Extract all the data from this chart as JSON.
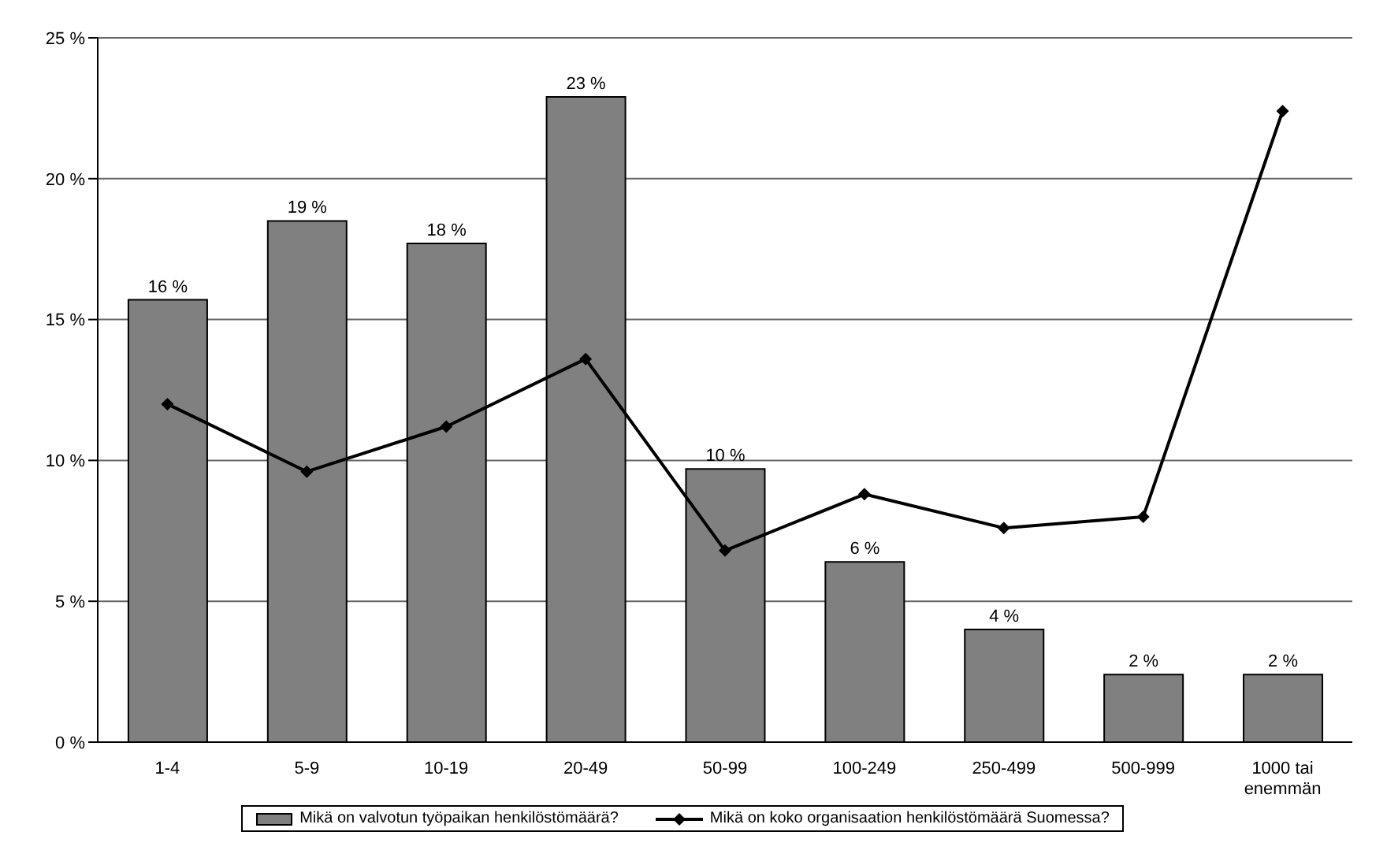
{
  "chart_data": {
    "type": "bar",
    "categories": [
      "1-4",
      "5-9",
      "10-19",
      "20-49",
      "50-99",
      "100-249",
      "250-499",
      "500-999",
      "1000 tai enemmän"
    ],
    "series": [
      {
        "name": "Mikä on valvotun työpaikan henkilöstömäärä?",
        "color": "#808080",
        "values": [
          15.7,
          18.5,
          17.7,
          22.9,
          9.7,
          6.4,
          4.0,
          2.4,
          2.4
        ],
        "value_labels": [
          "16 %",
          "19 %",
          "18 %",
          "23 %",
          "10 %",
          "6 %",
          "4 %",
          "2 %",
          "2 %"
        ]
      },
      {
        "name": "Mikä on koko organisaation henkilöstömäärä Suomessa?",
        "type": "line",
        "color": "#000000",
        "marker": "diamond",
        "values": [
          12.0,
          9.6,
          11.2,
          13.6,
          6.8,
          8.8,
          7.6,
          8.0,
          22.4
        ]
      }
    ],
    "ylim": [
      0,
      25
    ],
    "yticks": [
      {
        "value": 0,
        "label": "0 %"
      },
      {
        "value": 5,
        "label": "5 %"
      },
      {
        "value": 10,
        "label": "10 %"
      },
      {
        "value": 15,
        "label": "15 %"
      },
      {
        "value": 20,
        "label": "20 %"
      },
      {
        "value": 25,
        "label": "25 %"
      }
    ],
    "grid": "y",
    "legend": "bottom"
  }
}
